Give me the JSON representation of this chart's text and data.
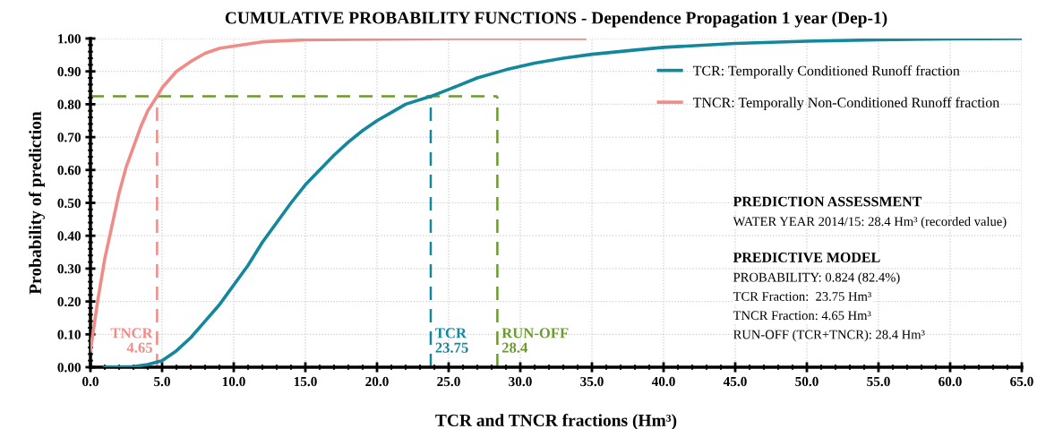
{
  "chart_data": {
    "type": "line",
    "title": "CUMULATIVE PROBABILITY FUNCTIONS - Dependence Propagation 1 year (Dep-1)",
    "xlabel": "TCR and TNCR fractions (Hm³)",
    "ylabel": "Probability of prediction",
    "series": [
      {
        "name": "TCR: Temporally Conditioned Runoff fraction",
        "color": "#13879b",
        "x": [
          1,
          3,
          4,
          5,
          6,
          7,
          8,
          9,
          10,
          11,
          12,
          13,
          14,
          15,
          16,
          17,
          18,
          19,
          20,
          21,
          22,
          23.75,
          25,
          27,
          29,
          31,
          33,
          35,
          38,
          40,
          45,
          50,
          55,
          60,
          65
        ],
        "values": [
          0,
          0.002,
          0.008,
          0.02,
          0.05,
          0.09,
          0.14,
          0.19,
          0.25,
          0.31,
          0.38,
          0.44,
          0.5,
          0.555,
          0.6,
          0.645,
          0.685,
          0.72,
          0.75,
          0.775,
          0.8,
          0.824,
          0.845,
          0.88,
          0.905,
          0.925,
          0.94,
          0.952,
          0.965,
          0.973,
          0.985,
          0.992,
          0.996,
          0.999,
          1.0
        ]
      },
      {
        "name": "TNCR: Temporally Non-Conditioned Runoff fraction",
        "color": "#f08c88",
        "x": [
          0,
          0.5,
          1,
          1.5,
          2,
          2.5,
          3,
          3.5,
          4,
          4.65,
          5,
          6,
          7,
          8,
          9,
          10,
          12,
          15,
          20,
          25,
          34.5
        ],
        "values": [
          0.05,
          0.2,
          0.33,
          0.43,
          0.53,
          0.61,
          0.67,
          0.73,
          0.78,
          0.824,
          0.85,
          0.9,
          0.93,
          0.955,
          0.97,
          0.977,
          0.99,
          0.996,
          0.998,
          1.0,
          1.0
        ]
      }
    ],
    "ref_lines": [
      {
        "axis": "y",
        "value": 0.824,
        "label": null,
        "color": "#6b9a2e",
        "line_style": "dashed"
      },
      {
        "axis": "x",
        "value": 4.65,
        "label": "TNCR\n4.65",
        "color": "#f08c88",
        "line_style": "dashed"
      },
      {
        "axis": "x",
        "value": 23.75,
        "label": "TCR\n23.75",
        "color": "#13879b",
        "line_style": "dashed"
      },
      {
        "axis": "x",
        "value": 28.4,
        "label": "RUN-OFF\n28.4",
        "color": "#6b9a2e",
        "line_style": "dashed"
      }
    ],
    "annotations": [
      "PREDICTION ASSESSMENT",
      "WATER YEAR 2014/15: 28.4 Hm³ (recorded value)",
      "PREDICTIVE MODEL",
      "PROBABILITY: 0.824 (82.4%)",
      "TCR Fraction:  23.75 Hm³",
      "TNCR Fraction: 4.65 Hm³",
      "RUN-OFF (TCR+TNCR): 28.4 Hm³"
    ],
    "xlim": [
      0,
      65
    ],
    "ylim": [
      0,
      1
    ],
    "xticks": [
      {
        "value": 0,
        "label": "0.0"
      },
      {
        "value": 5,
        "label": "5.0"
      },
      {
        "value": 10,
        "label": "10.0"
      },
      {
        "value": 15,
        "label": "15.0"
      },
      {
        "value": 20,
        "label": "20.0"
      },
      {
        "value": 25,
        "label": "25.0"
      },
      {
        "value": 30,
        "label": "30.0"
      },
      {
        "value": 35,
        "label": "35.0"
      },
      {
        "value": 40,
        "label": "40.0"
      },
      {
        "value": 45,
        "label": "45.0"
      },
      {
        "value": 50,
        "label": "50.0"
      },
      {
        "value": 55,
        "label": "55.0"
      },
      {
        "value": 60,
        "label": "60.0"
      },
      {
        "value": 65,
        "label": "65.0"
      }
    ],
    "yticks": [
      {
        "value": 0,
        "label": "0.00"
      },
      {
        "value": 0.1,
        "label": "0.10"
      },
      {
        "value": 0.2,
        "label": "0.20"
      },
      {
        "value": 0.3,
        "label": "0.30"
      },
      {
        "value": 0.4,
        "label": "0.40"
      },
      {
        "value": 0.5,
        "label": "0.50"
      },
      {
        "value": 0.6,
        "label": "0.60"
      },
      {
        "value": 0.7,
        "label": "0.70"
      },
      {
        "value": 0.8,
        "label": "0.80"
      },
      {
        "value": 0.9,
        "label": "0.90"
      },
      {
        "value": 1,
        "label": "1.00"
      }
    ],
    "grid": true,
    "legend": "right",
    "marker": "none",
    "line_style": "solid"
  }
}
